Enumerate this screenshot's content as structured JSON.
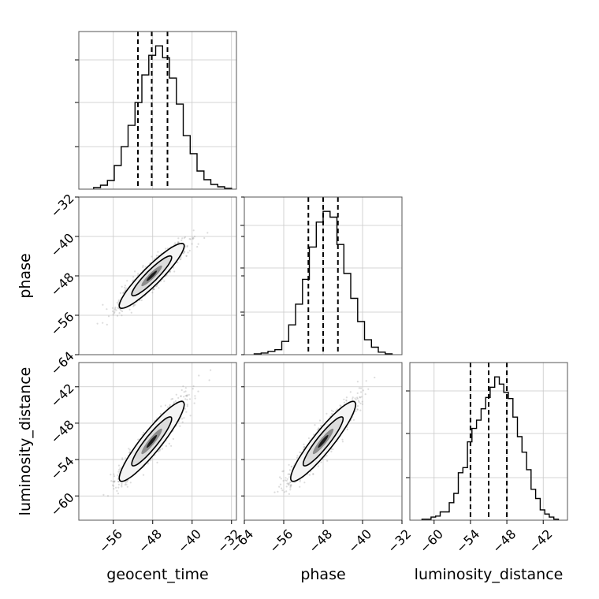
{
  "chart_data": {
    "type": "corner",
    "parameters": [
      "geocent_time",
      "phase",
      "luminosity_distance"
    ],
    "ranges": [
      [
        -63,
        -31
      ],
      [
        -64,
        -32
      ],
      [
        -64,
        -38
      ]
    ],
    "ticks": [
      [
        -56,
        -48,
        -40,
        -32
      ],
      [
        -64,
        -56,
        -48,
        -40,
        -32
      ],
      [
        -60,
        -54,
        -48,
        -42
      ]
    ],
    "y_ticks": {
      "phase": [
        -32,
        -40,
        -48,
        -56,
        -64
      ],
      "luminosity_distance": [
        -42,
        -48,
        -54,
        -60
      ]
    },
    "tick_labels": {
      "geocent_time": [
        "−56",
        "−48",
        "−40",
        "−32"
      ],
      "phase": [
        "−64",
        "−56",
        "−48",
        "−40",
        "−32"
      ],
      "luminosity_distance": [
        "−60",
        "−54",
        "−48",
        "−42"
      ],
      "phase_y": [
        "−32",
        "−40",
        "−48",
        "−56",
        "−64"
      ],
      "luminosity_distance_y": [
        "−42",
        "−48",
        "−54",
        "−60"
      ]
    },
    "quantiles": {
      "geocent_time": [
        -51.0,
        -48.2,
        -45.0
      ],
      "phase": [
        -51.0,
        -48.0,
        -45.0
      ],
      "luminosity_distance": [
        -54.0,
        -51.0,
        -48.0
      ]
    },
    "histograms": {
      "geocent_time": {
        "edges": [
          -60.0,
          -58.6,
          -57.2,
          -55.8,
          -54.4,
          -53.0,
          -51.6,
          -50.2,
          -48.8,
          -47.4,
          -46.0,
          -44.6,
          -43.2,
          -41.8,
          -40.4,
          -39.0,
          -37.6,
          -36.2,
          -34.8,
          -33.4,
          -32.0
        ],
        "counts": [
          2,
          5,
          11,
          30,
          54,
          81,
          110,
          145,
          170,
          182,
          167,
          141,
          108,
          68,
          45,
          23,
          12,
          6,
          3,
          1
        ]
      },
      "phase": {
        "edges": [
          -62.0,
          -60.6,
          -59.2,
          -57.8,
          -56.4,
          -55.0,
          -53.6,
          -52.2,
          -50.8,
          -49.4,
          -48.0,
          -46.6,
          -45.2,
          -43.8,
          -42.4,
          -41.0,
          -39.6,
          -38.2,
          -36.8,
          -35.4,
          -34.0
        ],
        "counts": [
          1,
          2,
          4,
          6,
          16,
          36,
          61,
          91,
          130,
          160,
          173,
          166,
          133,
          98,
          68,
          40,
          18,
          9,
          3,
          1
        ]
      },
      "luminosity_distance": {
        "edges": [
          -62.0,
          -61.25,
          -60.5,
          -59.75,
          -59.0,
          -58.25,
          -57.5,
          -56.75,
          -56.0,
          -55.25,
          -54.5,
          -53.75,
          -53.0,
          -52.25,
          -51.5,
          -50.75,
          -50.0,
          -49.25,
          -48.5,
          -47.75,
          -47.0,
          -46.25,
          -45.5,
          -44.75,
          -44.0,
          -43.25,
          -42.5,
          -41.75,
          -41.0,
          -40.25,
          -39.5
        ],
        "counts": [
          1,
          1,
          3,
          4,
          8,
          8,
          17,
          26,
          46,
          51,
          76,
          89,
          97,
          108,
          119,
          129,
          139,
          132,
          124,
          118,
          100,
          81,
          66,
          49,
          30,
          21,
          10,
          6,
          3,
          1
        ]
      }
    },
    "correlation": 0.92,
    "grid": true
  }
}
